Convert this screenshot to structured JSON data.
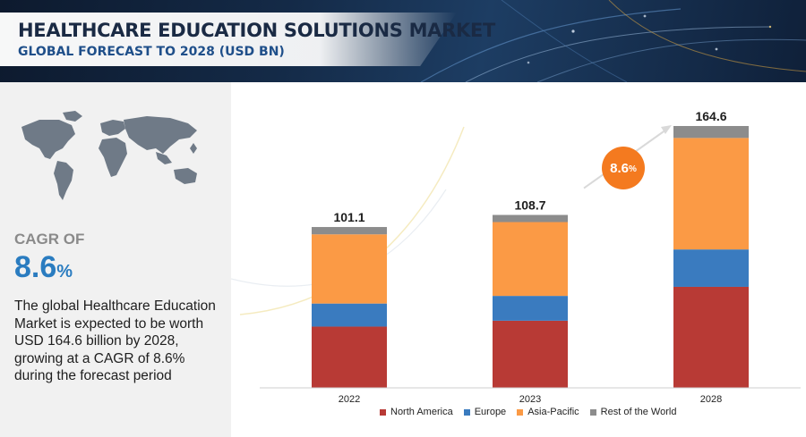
{
  "header": {
    "title": "HEALTHCARE EDUCATION SOLUTIONS MARKET",
    "subtitle": "GLOBAL FORECAST TO 2028 (USD BN)"
  },
  "left_panel": {
    "map_icon": "world-map-icon",
    "cagr_label": "CAGR OF",
    "cagr_value": "8.6",
    "cagr_unit": "%",
    "description": "The global Healthcare Education Market is expected to be worth USD  164.6 billion by 2028, growing at a CAGR of 8.6% during the forecast period"
  },
  "cagr_bubble": {
    "value": "8.6",
    "unit": "%"
  },
  "chart_data": {
    "type": "bar",
    "stacked": true,
    "categories": [
      "2022",
      "2023",
      "2028"
    ],
    "totals": [
      101.1,
      108.7,
      164.6
    ],
    "series": [
      {
        "name": "North America",
        "color": "#b83a35",
        "values": [
          38.5,
          42.2,
          63.5
        ]
      },
      {
        "name": "Europe",
        "color": "#3a7bbf",
        "values": [
          14.5,
          15.6,
          23.5
        ]
      },
      {
        "name": "Asia-Pacific",
        "color": "#fb9a45",
        "values": [
          43.5,
          46.4,
          70.1
        ]
      },
      {
        "name": "Rest of the World",
        "color": "#8c8c8c",
        "values": [
          4.6,
          4.5,
          7.5
        ]
      }
    ],
    "ylim": [
      0,
      164.6
    ],
    "grid": false,
    "legend_position": "bottom"
  }
}
